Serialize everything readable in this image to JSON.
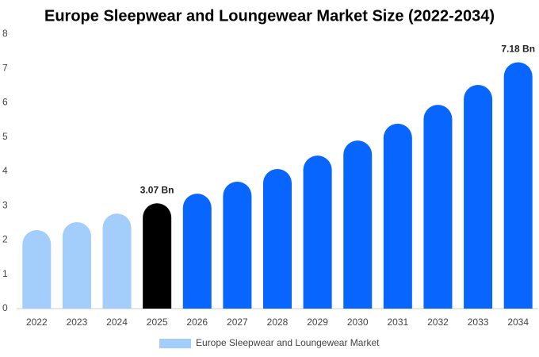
{
  "chart_data": {
    "type": "bar",
    "title": "Europe Sleepwear and Loungewear Market Size (2022-2034)",
    "categories": [
      "2022",
      "2023",
      "2024",
      "2025",
      "2026",
      "2027",
      "2028",
      "2029",
      "2030",
      "2031",
      "2032",
      "2033",
      "2034"
    ],
    "series": [
      {
        "name": "Europe Sleepwear and Loungewear Market",
        "color": "#a3cdfb",
        "colors": [
          "#a3cdfb",
          "#a3cdfb",
          "#a3cdfb",
          "#000000",
          "#0866ff",
          "#0866ff",
          "#0866ff",
          "#0866ff",
          "#0866ff",
          "#0866ff",
          "#0866ff",
          "#0866ff",
          "#0866ff"
        ],
        "values": [
          2.29,
          2.52,
          2.77,
          3.07,
          3.35,
          3.7,
          4.07,
          4.46,
          4.9,
          5.39,
          5.94,
          6.52,
          7.18
        ],
        "value_labels": [
          null,
          null,
          null,
          "3.07 Bn",
          null,
          null,
          null,
          null,
          null,
          null,
          null,
          null,
          "7.18 Bn"
        ]
      }
    ],
    "ylim": [
      0,
      8
    ],
    "yticks": [
      0,
      1,
      2,
      3,
      4,
      5,
      6,
      7,
      8
    ],
    "grid": false,
    "legend": "bottom"
  }
}
